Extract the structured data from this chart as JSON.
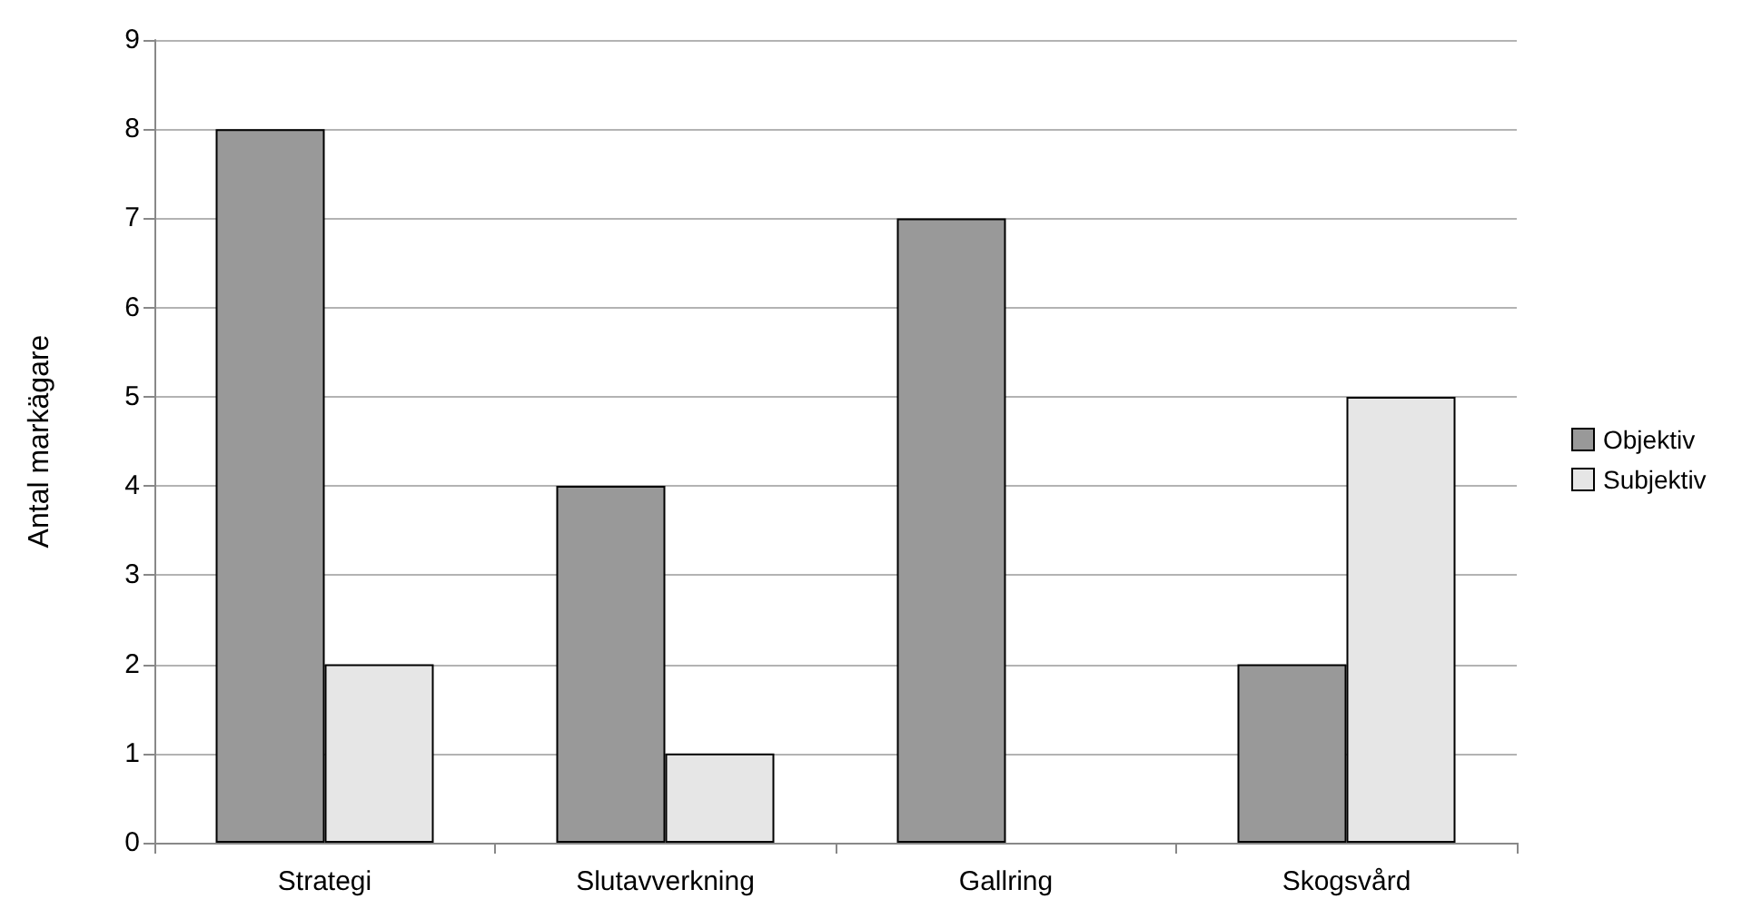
{
  "chart_data": {
    "type": "bar",
    "ylabel": "Antal markägare",
    "categories": [
      "Strategi",
      "Slutavverkning",
      "Gallring",
      "Skogsvård"
    ],
    "series": [
      {
        "name": "Objektiv",
        "color": "#999999",
        "values": [
          8,
          4,
          7,
          2
        ]
      },
      {
        "name": "Subjektiv",
        "color": "#e6e6e6",
        "values": [
          2,
          1,
          0,
          5
        ]
      }
    ],
    "ylim": [
      0,
      9
    ],
    "yticks": [
      0,
      1,
      2,
      3,
      4,
      5,
      6,
      7,
      8,
      9
    ],
    "grid": "y",
    "legend": "right"
  }
}
